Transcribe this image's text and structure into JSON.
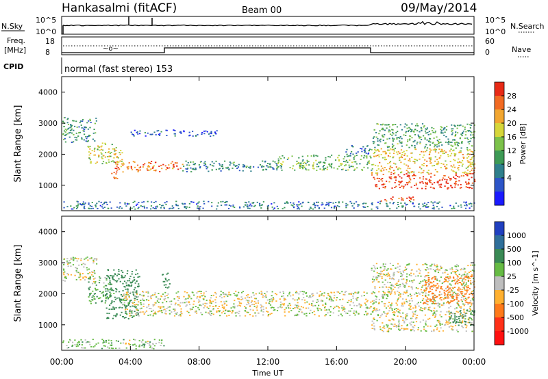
{
  "header": {
    "station": "Hankasalmi (fitACF)",
    "beam": "Beam 00",
    "date": "09/May/2014"
  },
  "noise_panel": {
    "left_label": "N.Sky",
    "left_ticks": [
      "10^5",
      "10^0"
    ],
    "right_label": "N.Search",
    "right_ticks": [
      "10^5",
      "10^0"
    ]
  },
  "freq_panel": {
    "left_label_line1": "Freq.",
    "left_label_line2": "[MHz]",
    "left_ticks": [
      "18",
      "8"
    ],
    "right_label": "Nave",
    "right_ticks": [
      "60",
      "0"
    ]
  },
  "cpid": {
    "label": "CPID",
    "text": "normal (fast stereo) 153"
  },
  "chart_data": [
    {
      "type": "heatmap",
      "panel": "power",
      "ylabel": "Slant Range [km]",
      "ylim": [
        180,
        4500
      ],
      "yticks": [
        1000,
        2000,
        3000,
        4000
      ],
      "xlim": [
        "00:00",
        "24:00"
      ],
      "colorbar": {
        "label": "Power [dB]",
        "ticks": [
          4,
          8,
          12,
          16,
          20,
          24,
          28
        ],
        "colors": [
          "#1a1aff",
          "#2d55c8",
          "#2f7f8c",
          "#3d9a55",
          "#7cc24a",
          "#d6d63a",
          "#f2a630",
          "#f26a22",
          "#e82a16"
        ]
      },
      "echo_regions": [
        {
          "t0": 0.0,
          "t1": 2.0,
          "r0": 2400,
          "r1": 3200,
          "db": 10
        },
        {
          "t0": 1.5,
          "t1": 3.5,
          "r0": 1700,
          "r1": 2400,
          "db": 18
        },
        {
          "t0": 2.8,
          "t1": 3.2,
          "r0": 1200,
          "r1": 1550,
          "db": 26
        },
        {
          "t0": 3.0,
          "t1": 7.0,
          "r0": 1450,
          "r1": 1800,
          "db": 24
        },
        {
          "t0": 4.0,
          "t1": 9.0,
          "r0": 2600,
          "r1": 2800,
          "db": 6
        },
        {
          "t0": 7.0,
          "t1": 12.5,
          "r0": 1450,
          "r1": 1800,
          "db": 10
        },
        {
          "t0": 12.5,
          "t1": 18.0,
          "r0": 1500,
          "r1": 2000,
          "db": 14
        },
        {
          "t0": 16.5,
          "t1": 18.0,
          "r0": 2000,
          "r1": 2300,
          "db": 8
        },
        {
          "t0": 18.0,
          "t1": 24.0,
          "r0": 900,
          "r1": 1400,
          "db": 28
        },
        {
          "t0": 18.0,
          "t1": 24.0,
          "r0": 1400,
          "r1": 2200,
          "db": 20
        },
        {
          "t0": 18.0,
          "t1": 24.0,
          "r0": 2200,
          "r1": 3000,
          "db": 12
        },
        {
          "t0": 0.0,
          "t1": 24.0,
          "r0": 250,
          "r1": 500,
          "db": 8
        },
        {
          "t0": 18.5,
          "t1": 20.5,
          "r0": 500,
          "r1": 650,
          "db": 26
        }
      ]
    },
    {
      "type": "heatmap",
      "panel": "velocity",
      "ylabel": "Slant Range [km]",
      "xlabel": "Time UT",
      "ylim": [
        180,
        4500
      ],
      "yticks": [
        1000,
        2000,
        3000,
        4000
      ],
      "xticks": [
        "00:00",
        "04:00",
        "08:00",
        "12:00",
        "16:00",
        "20:00",
        "00:00"
      ],
      "colorbar": {
        "label": "Velocity [m s^-1]",
        "ticks": [
          1000,
          500,
          100,
          25,
          -25,
          -100,
          -500,
          -1000
        ],
        "colors": [
          "#2040c0",
          "#2f6f9a",
          "#3a8a55",
          "#66bb44",
          "#bebebe",
          "#ffb030",
          "#ff7a1a",
          "#ff3018",
          "#ff1010"
        ]
      },
      "echo_regions": [
        {
          "t0": 0.0,
          "t1": 2.0,
          "r0": 2400,
          "r1": 3200,
          "vel": 0
        },
        {
          "t0": 1.5,
          "t1": 3.0,
          "r0": 1700,
          "r1": 2600,
          "vel": 100
        },
        {
          "t0": 2.5,
          "t1": 4.5,
          "r0": 1200,
          "r1": 2800,
          "vel": 300
        },
        {
          "t0": 5.8,
          "t1": 6.3,
          "r0": 2200,
          "r1": 2700,
          "vel": 400
        },
        {
          "t0": 3.5,
          "t1": 18.0,
          "r0": 1300,
          "r1": 2100,
          "vel": 0
        },
        {
          "t0": 18.0,
          "t1": 24.0,
          "r0": 800,
          "r1": 3000,
          "vel": 0
        },
        {
          "t0": 21.0,
          "t1": 24.0,
          "r0": 1700,
          "r1": 2600,
          "vel": -300
        },
        {
          "t0": 22.5,
          "t1": 24.0,
          "r0": 1000,
          "r1": 1500,
          "vel": 200
        },
        {
          "t0": 0.0,
          "t1": 6.0,
          "r0": 250,
          "r1": 550,
          "vel": 50
        }
      ]
    }
  ]
}
